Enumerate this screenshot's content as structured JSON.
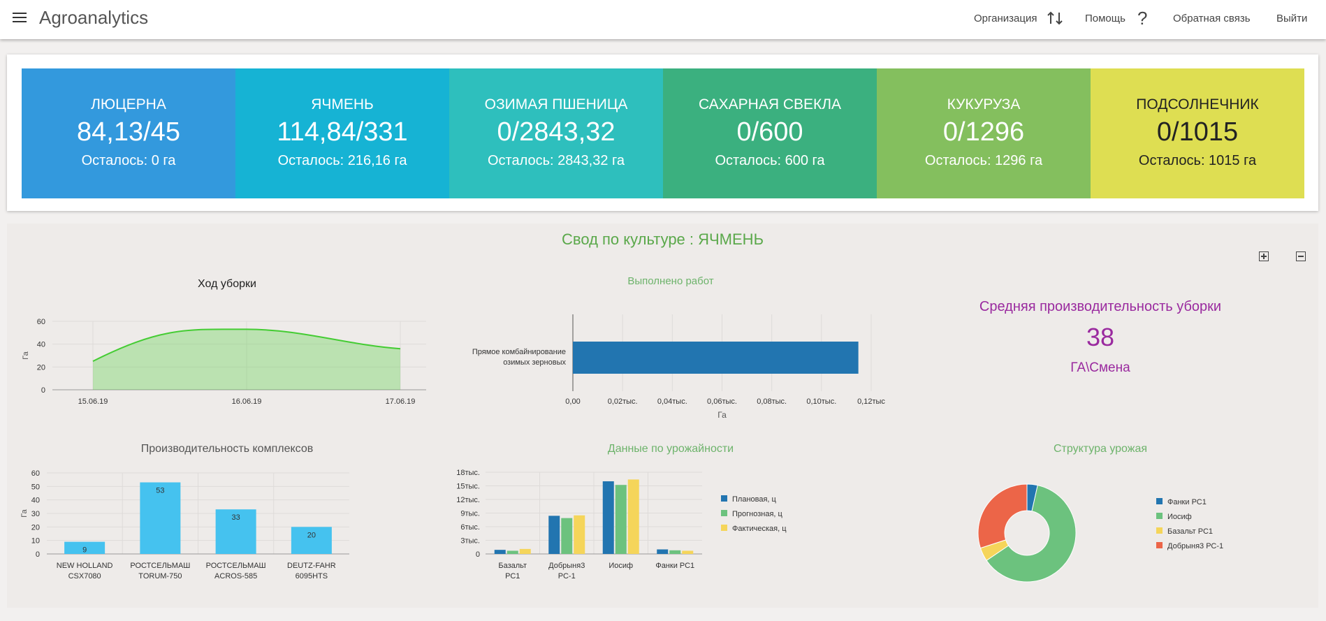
{
  "app": {
    "title": "Agroanalytics"
  },
  "nav": {
    "organization": "Организация",
    "help": "Помощь",
    "feedback": "Обратная связь",
    "logout": "Выйти"
  },
  "kpis": [
    {
      "name": "ЛЮЦЕРНА",
      "value": "84,13/45",
      "remaining": "Осталось: 0 га",
      "color": "#3399dd",
      "text_color": "#ffffff"
    },
    {
      "name": "ЯЧМЕНЬ",
      "value": "114,84/331",
      "remaining": "Осталось: 216,16 га",
      "color": "#16b3d4",
      "text_color": "#ffffff"
    },
    {
      "name": "ОЗИМАЯ ПШЕНИЦА",
      "value": "0/2843,32",
      "remaining": "Осталось: 2843,32 га",
      "color": "#2ebfbd",
      "text_color": "#ffffff"
    },
    {
      "name": "САХАРНАЯ СВЕКЛА",
      "value": "0/600",
      "remaining": "Осталось: 600 га",
      "color": "#3bb07f",
      "text_color": "#ffffff"
    },
    {
      "name": "КУКУРУЗА",
      "value": "0/1296",
      "remaining": "Осталось: 1296 га",
      "color": "#84bf5e",
      "text_color": "#ffffff"
    },
    {
      "name": "ПОДСОЛНЕЧНИК",
      "value": "0/1015",
      "remaining": "Осталось: 1015 га",
      "color": "#dede52",
      "text_color": "#222222"
    }
  ],
  "summary": {
    "title": "Свод по культуре : ЯЧМЕНЬ",
    "avg_title": "Средняя производительность уборки",
    "avg_value": "38",
    "avg_unit": "ГА\\Смена"
  },
  "chart_data": [
    {
      "id": "progress",
      "type": "area",
      "title": "Ход уборки",
      "ylabel": "Га",
      "x": [
        "15.06.19",
        "16.06.19",
        "17.06.19"
      ],
      "values": [
        25,
        53,
        36
      ],
      "ylim": [
        0,
        60
      ],
      "yticks": [
        0,
        20,
        40,
        60
      ],
      "color": "#44cc33"
    },
    {
      "id": "work",
      "type": "bar",
      "orientation": "horizontal",
      "title": "Выполнено работ",
      "xlabel": "Га",
      "categories": [
        "Прямое комбайнирование озимых зерновых"
      ],
      "values": [
        114.84
      ],
      "xlim": [
        0,
        120
      ],
      "xtick_labels": [
        "0,00",
        "0,02тыс.",
        "0,04тыс.",
        "0,06тыс.",
        "0,08тыс.",
        "0,10тыс.",
        "0,12тыс"
      ],
      "color": "#2275b0"
    },
    {
      "id": "complexes",
      "type": "bar",
      "title": "Производительность комплексов",
      "ylabel": "Га",
      "categories": [
        "NEW HOLLAND CSX7080",
        "РОСТСЕЛЬМАШ TORUM-750",
        "РОСТСЕЛЬМАШ ACROS-585",
        "DEUTZ-FAHR 6095HTS"
      ],
      "values": [
        9,
        53,
        33,
        20
      ],
      "ylim": [
        0,
        60
      ],
      "yticks": [
        0,
        10,
        20,
        30,
        40,
        50,
        60
      ],
      "color": "#45c2ef"
    },
    {
      "id": "yield",
      "type": "bar",
      "title": "Данные по урожайности",
      "categories": [
        "Базальт РС1",
        "Добрыня3 РС-1",
        "Иосиф",
        "Фанки РС1"
      ],
      "series": [
        {
          "name": "Плановая, ц",
          "values": [
            900,
            8400,
            16000,
            1000
          ],
          "color": "#2275b0"
        },
        {
          "name": "Прогнозная, ц",
          "values": [
            700,
            7900,
            15200,
            800
          ],
          "color": "#6cc27e"
        },
        {
          "name": "Фактическая, ц",
          "values": [
            1100,
            8500,
            16400,
            700
          ],
          "color": "#f5d55a"
        }
      ],
      "ylim": [
        0,
        18000
      ],
      "ytick_labels": [
        "0",
        "3тыс.",
        "6тыс.",
        "9тыс.",
        "12тыс.",
        "15тыс.",
        "18тыс."
      ]
    },
    {
      "id": "structure",
      "type": "pie",
      "title": "Структура урожая",
      "labels": [
        "Фанки РС1",
        "Иосиф",
        "Базальт РС1",
        "Добрыня3 РС-1"
      ],
      "values": [
        3.5,
        62,
        4.5,
        30
      ],
      "colors": [
        "#2275b0",
        "#6cc27e",
        "#f5d55a",
        "#ec6548"
      ]
    }
  ]
}
